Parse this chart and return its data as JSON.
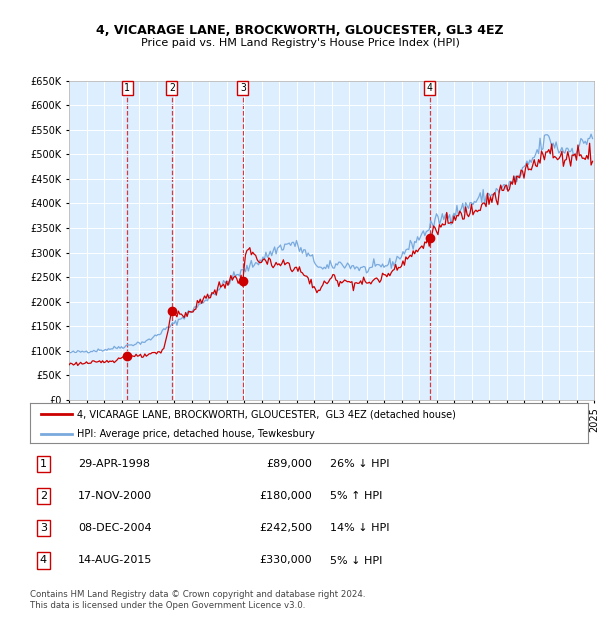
{
  "title": "4, VICARAGE LANE, BROCKWORTH, GLOUCESTER, GL3 4EZ",
  "subtitle": "Price paid vs. HM Land Registry's House Price Index (HPI)",
  "sale_points": [
    {
      "label": "1",
      "year_dec": 1998.328,
      "price": 89000
    },
    {
      "label": "2",
      "year_dec": 2000.874,
      "price": 180000
    },
    {
      "label": "3",
      "year_dec": 2004.934,
      "price": 242500
    },
    {
      "label": "4",
      "year_dec": 2015.619,
      "price": 330000
    }
  ],
  "table_rows": [
    {
      "num": "1",
      "date": "29-APR-1998",
      "price": "£89,000",
      "hpi": "26% ↓ HPI"
    },
    {
      "num": "2",
      "date": "17-NOV-2000",
      "price": "£180,000",
      "hpi": "5% ↑ HPI"
    },
    {
      "num": "3",
      "date": "08-DEC-2004",
      "price": "£242,500",
      "hpi": "14% ↓ HPI"
    },
    {
      "num": "4",
      "date": "14-AUG-2015",
      "price": "£330,000",
      "hpi": "5% ↓ HPI"
    }
  ],
  "legend_line1": "4, VICARAGE LANE, BROCKWORTH, GLOUCESTER,  GL3 4EZ (detached house)",
  "legend_line2": "HPI: Average price, detached house, Tewkesbury",
  "footer": "Contains HM Land Registry data © Crown copyright and database right 2024.\nThis data is licensed under the Open Government Licence v3.0.",
  "hpi_color": "#7aaadd",
  "price_color": "#cc0000",
  "bg_color": "#ddeeff",
  "ylim": [
    0,
    650000
  ],
  "yticks": [
    0,
    50000,
    100000,
    150000,
    200000,
    250000,
    300000,
    350000,
    400000,
    450000,
    500000,
    550000,
    600000,
    650000
  ],
  "xlim_start": 1995,
  "xlim_end": 2025
}
